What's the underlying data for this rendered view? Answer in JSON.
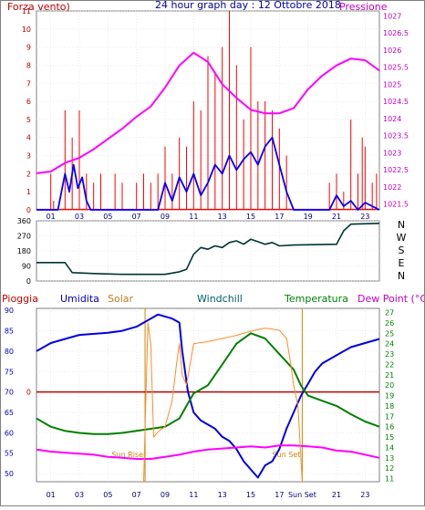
{
  "colors": {
    "frame": "#808080",
    "wind": "#ff0000",
    "gust": "#0000ff",
    "pressure": "#ff00ff",
    "direction": "#003333",
    "humidity": "#0000e0",
    "solar": "#ff8c28",
    "windchill": "#008000",
    "temperature": "#008000",
    "dewpoint": "#ff00ff",
    "rain": "#c00000",
    "sun_event": "#cc8800",
    "title": "#0000a0",
    "axis_left": "#c00000",
    "axis_right": "#c000c0",
    "axis_lower_right": "#008000",
    "axis_lower_left": "#0000c0"
  },
  "chart_data": [
    {
      "type": "line",
      "title": "24 hour graph day : 12 Ottobre 2018",
      "left_label": "Forza vento)",
      "right_label": "Pressione",
      "x_ticks": [
        "01",
        "03",
        "05",
        "07",
        "09",
        "11",
        "13",
        "15",
        "17",
        "19",
        "21",
        "23"
      ],
      "y_left_ticks": [
        "0",
        "1",
        "2",
        "3",
        "4",
        "5",
        "6",
        "7",
        "8",
        "9",
        "10",
        "11"
      ],
      "y_left_range": [
        0,
        11
      ],
      "y_right_ticks": [
        "1021.5",
        "1022",
        "1022.5",
        "1023",
        "1023.5",
        "1024",
        "1024.5",
        "1025",
        "1025.5",
        "1026",
        "1026.5",
        "1027"
      ],
      "y_right_range": [
        1021.33,
        1027.14
      ],
      "series": [
        {
          "key": "pressure",
          "axis": "right",
          "points": [
            [
              0,
              1022.4
            ],
            [
              1,
              1022.45
            ],
            [
              2,
              1022.7
            ],
            [
              3,
              1022.85
            ],
            [
              4,
              1023.1
            ],
            [
              5,
              1023.4
            ],
            [
              6,
              1023.7
            ],
            [
              7,
              1024.05
            ],
            [
              8,
              1024.35
            ],
            [
              9,
              1024.9
            ],
            [
              10,
              1025.55
            ],
            [
              11,
              1025.92
            ],
            [
              12,
              1025.65
            ],
            [
              13,
              1025.0
            ],
            [
              14,
              1024.6
            ],
            [
              15,
              1024.25
            ],
            [
              16,
              1024.15
            ],
            [
              17,
              1024.15
            ],
            [
              18,
              1024.3
            ],
            [
              19,
              1024.85
            ],
            [
              20,
              1025.25
            ],
            [
              21,
              1025.55
            ],
            [
              22,
              1025.75
            ],
            [
              23,
              1025.7
            ],
            [
              24,
              1025.4
            ]
          ]
        },
        {
          "key": "gust",
          "axis": "left",
          "points": [
            [
              0,
              0
            ],
            [
              1.5,
              0
            ],
            [
              2,
              2
            ],
            [
              2.3,
              1
            ],
            [
              2.6,
              2.5
            ],
            [
              2.9,
              1.2
            ],
            [
              3.2,
              1.8
            ],
            [
              3.5,
              0.5
            ],
            [
              3.8,
              0
            ],
            [
              8.5,
              0
            ],
            [
              9,
              1.5
            ],
            [
              9.5,
              0.5
            ],
            [
              10,
              1.8
            ],
            [
              10.5,
              1
            ],
            [
              11,
              2
            ],
            [
              11.5,
              0.8
            ],
            [
              12,
              1.5
            ],
            [
              12.5,
              2.5
            ],
            [
              13,
              2
            ],
            [
              13.5,
              3
            ],
            [
              14,
              2.2
            ],
            [
              14.5,
              2.8
            ],
            [
              15,
              3.2
            ],
            [
              15.5,
              2.5
            ],
            [
              16,
              3.5
            ],
            [
              16.5,
              4
            ],
            [
              17,
              2.5
            ],
            [
              17.5,
              1
            ],
            [
              18,
              0
            ],
            [
              20.5,
              0
            ],
            [
              21,
              0.8
            ],
            [
              21.5,
              0.2
            ],
            [
              22,
              0.5
            ],
            [
              22.5,
              0
            ],
            [
              23,
              0.4
            ],
            [
              24,
              0
            ]
          ]
        }
      ],
      "wind_bars": [
        [
          2,
          5.5
        ],
        [
          2.5,
          4
        ],
        [
          3,
          5.5
        ],
        [
          3.5,
          2
        ],
        [
          4,
          1.5
        ],
        [
          7,
          1.5
        ],
        [
          9,
          3.5
        ],
        [
          9.5,
          2
        ],
        [
          10,
          4
        ],
        [
          10.5,
          3.5
        ],
        [
          11,
          6
        ],
        [
          11.5,
          5.5
        ],
        [
          12,
          8.5
        ],
        [
          12.5,
          7.5
        ],
        [
          13,
          9
        ],
        [
          13.5,
          11
        ],
        [
          14,
          8
        ],
        [
          14.5,
          5
        ],
        [
          15,
          9
        ],
        [
          15.5,
          6
        ],
        [
          16,
          6
        ],
        [
          16.5,
          5.5
        ],
        [
          17,
          4.5
        ],
        [
          17.5,
          3
        ],
        [
          20.5,
          1.5
        ],
        [
          21,
          2
        ],
        [
          21.5,
          1
        ],
        [
          22,
          5
        ],
        [
          22.5,
          2
        ],
        [
          23,
          3.5
        ],
        [
          23.5,
          1.5
        ]
      ],
      "wind_base": [
        [
          1,
          2
        ],
        [
          1.2,
          0.5
        ],
        [
          3,
          3.5
        ],
        [
          4.5,
          2
        ],
        [
          5.5,
          2
        ],
        [
          6,
          1.5
        ],
        [
          7.5,
          2
        ],
        [
          8,
          1.5
        ],
        [
          8.5,
          2
        ],
        [
          22.8,
          4
        ],
        [
          23.8,
          2
        ]
      ]
    },
    {
      "type": "line",
      "right_labels": [
        "N",
        "W",
        "S",
        "E",
        "N"
      ],
      "y_ticks": [
        "0",
        "90",
        "180",
        "270",
        "360"
      ],
      "y_range": [
        0,
        360
      ],
      "x_ticks": [
        "01",
        "03",
        "05",
        "07",
        "09",
        "11",
        "13",
        "15",
        "17",
        "19",
        "21",
        "23"
      ],
      "series": [
        {
          "key": "direction",
          "points": [
            [
              0,
              110
            ],
            [
              2,
              110
            ],
            [
              2.5,
              50
            ],
            [
              4,
              45
            ],
            [
              6,
              40
            ],
            [
              8,
              40
            ],
            [
              9,
              40
            ],
            [
              10,
              55
            ],
            [
              10.5,
              70
            ],
            [
              11,
              160
            ],
            [
              11.5,
              200
            ],
            [
              12,
              190
            ],
            [
              12.5,
              210
            ],
            [
              13,
              200
            ],
            [
              13.5,
              230
            ],
            [
              14,
              240
            ],
            [
              14.5,
              220
            ],
            [
              15,
              250
            ],
            [
              15.5,
              235
            ],
            [
              16,
              220
            ],
            [
              16.5,
              230
            ],
            [
              17,
              210
            ],
            [
              18,
              215
            ],
            [
              21,
              220
            ],
            [
              21.5,
              300
            ],
            [
              22,
              340
            ],
            [
              24,
              345
            ]
          ]
        }
      ]
    },
    {
      "type": "line",
      "labels": {
        "rain": "Pioggia",
        "humidity": "Umidita",
        "solar": "Solar",
        "windchill": "Windchill",
        "temperature": "Temperatura",
        "dewpoint": "Dew Point (°C)"
      },
      "rain_zero_label": "0",
      "sun_rise_label": "Sun Rise",
      "sun_set_label": "Sun Set",
      "sun_set_tick": "Sun Set",
      "x_ticks": [
        "01",
        "03",
        "05",
        "07",
        "09",
        "11",
        "13",
        "15",
        "17",
        "21",
        "23"
      ],
      "y_left_ticks": [
        "50",
        "55",
        "60",
        "65",
        "70",
        "75",
        "80",
        "85",
        "90"
      ],
      "y_left_range": [
        48,
        90.5
      ],
      "y_right_ticks": [
        "11",
        "12",
        "13",
        "14",
        "15",
        "16",
        "17",
        "18",
        "19",
        "20",
        "21",
        "22",
        "23",
        "24",
        "25",
        "26",
        "27"
      ],
      "y_right_range": [
        10.7,
        27.4
      ],
      "sun_rise_hour": 7.6,
      "sun_set_hour": 18.6,
      "rain_value": 0,
      "series": [
        {
          "key": "humidity",
          "axis": "left",
          "points": [
            [
              0,
              80
            ],
            [
              0.5,
              81
            ],
            [
              1,
              82
            ],
            [
              2,
              83
            ],
            [
              3,
              84
            ],
            [
              5,
              84.5
            ],
            [
              6,
              85
            ],
            [
              7,
              86
            ],
            [
              8,
              88
            ],
            [
              8.5,
              89
            ],
            [
              9,
              88.5
            ],
            [
              9.5,
              88
            ],
            [
              10,
              87
            ],
            [
              10.2,
              80
            ],
            [
              10.6,
              70
            ],
            [
              11,
              65
            ],
            [
              11.5,
              63
            ],
            [
              12,
              62
            ],
            [
              12.5,
              61
            ],
            [
              13,
              59
            ],
            [
              13.5,
              58
            ],
            [
              14,
              56
            ],
            [
              14.5,
              53
            ],
            [
              15,
              51
            ],
            [
              15.5,
              49
            ],
            [
              16,
              52
            ],
            [
              16.5,
              53
            ],
            [
              17,
              56
            ],
            [
              17.5,
              61
            ],
            [
              18,
              65
            ],
            [
              18.5,
              69
            ],
            [
              19,
              72
            ],
            [
              19.5,
              75
            ],
            [
              20,
              77
            ],
            [
              21,
              79
            ],
            [
              22,
              81
            ],
            [
              23,
              82
            ],
            [
              24,
              83
            ]
          ]
        },
        {
          "key": "temperature",
          "axis": "right",
          "points": [
            [
              0,
              16.8
            ],
            [
              0.5,
              16.4
            ],
            [
              1,
              16
            ],
            [
              2,
              15.6
            ],
            [
              3,
              15.4
            ],
            [
              4,
              15.3
            ],
            [
              5,
              15.3
            ],
            [
              6,
              15.4
            ],
            [
              7,
              15.6
            ],
            [
              8,
              15.8
            ],
            [
              9,
              16
            ],
            [
              10,
              16.8
            ],
            [
              10.5,
              18
            ],
            [
              11,
              19.2
            ],
            [
              12,
              20
            ],
            [
              13,
              22
            ],
            [
              14,
              24
            ],
            [
              15,
              25
            ],
            [
              16,
              24.5
            ],
            [
              17,
              23
            ],
            [
              18,
              21.5
            ],
            [
              18.5,
              20
            ],
            [
              19,
              19
            ],
            [
              20,
              18.5
            ],
            [
              21,
              18
            ],
            [
              22,
              17.2
            ],
            [
              23,
              16.5
            ],
            [
              24,
              16
            ]
          ]
        },
        {
          "key": "dewpoint",
          "axis": "right",
          "points": [
            [
              0,
              13.8
            ],
            [
              1,
              13.6
            ],
            [
              2,
              13.5
            ],
            [
              3,
              13.4
            ],
            [
              4,
              13.3
            ],
            [
              5,
              13.1
            ],
            [
              6,
              13
            ],
            [
              7,
              12.9
            ],
            [
              8,
              12.9
            ],
            [
              9,
              13.1
            ],
            [
              10,
              13.3
            ],
            [
              11,
              13.6
            ],
            [
              12,
              13.8
            ],
            [
              13,
              13.9
            ],
            [
              14,
              14
            ],
            [
              15,
              14.1
            ],
            [
              16,
              14
            ],
            [
              17,
              14.2
            ],
            [
              18,
              14.2
            ],
            [
              19,
              14.1
            ],
            [
              20,
              14
            ],
            [
              21,
              13.7
            ],
            [
              22,
              13.6
            ],
            [
              23,
              13.3
            ],
            [
              24,
              13
            ]
          ]
        },
        {
          "key": "solar",
          "axis": "right",
          "points": [
            [
              7.5,
              10.7
            ],
            [
              7.8,
              26
            ],
            [
              8,
              24
            ],
            [
              8.2,
              15
            ],
            [
              8.5,
              15.5
            ],
            [
              9,
              16
            ],
            [
              9.5,
              18.5
            ],
            [
              9.8,
              22
            ],
            [
              10,
              24
            ],
            [
              10.2,
              21
            ],
            [
              10.5,
              20
            ],
            [
              11,
              24
            ],
            [
              12,
              24.2
            ],
            [
              13,
              24.5
            ],
            [
              14,
              24.8
            ],
            [
              15,
              25.2
            ],
            [
              16,
              25.5
            ],
            [
              17,
              25.3
            ],
            [
              17.5,
              24.5
            ],
            [
              17.8,
              22
            ],
            [
              18,
              20
            ],
            [
              18.3,
              18
            ],
            [
              18.6,
              10.7
            ]
          ]
        }
      ]
    }
  ]
}
